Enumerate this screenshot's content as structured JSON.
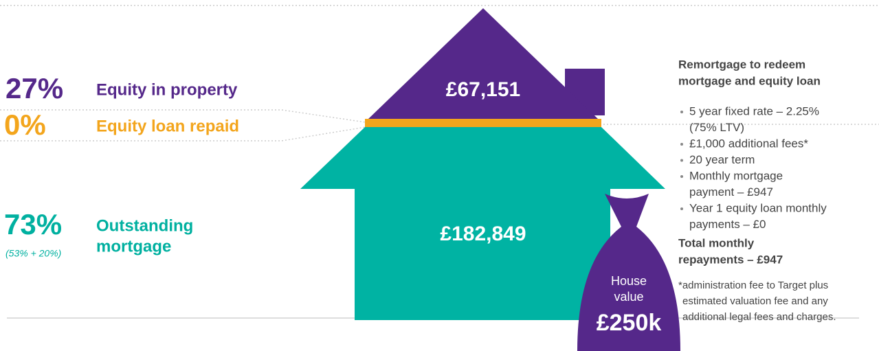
{
  "left": {
    "equity": {
      "percent": "27%",
      "label": "Equity in property"
    },
    "repaid": {
      "percent": "0%",
      "label": "Equity loan repaid"
    },
    "mortgage": {
      "percent": "73%",
      "note": "(53% + 20%)",
      "label": [
        "Outstanding",
        "mortgage"
      ]
    }
  },
  "house": {
    "roof_value": "£67,151",
    "body_value": "£182,849",
    "bag": {
      "label": [
        "House",
        "value"
      ],
      "value": "£250k"
    }
  },
  "right": {
    "title": [
      "Remortgage to redeem",
      "mortgage and equity loan"
    ],
    "items": [
      [
        "5 year fixed rate – 2.25%",
        "(75% LTV)"
      ],
      [
        "£1,000 additional fees*"
      ],
      [
        "20 year term"
      ],
      [
        "Monthly mortgage",
        "payment – £947"
      ],
      [
        "Year 1 equity loan monthly",
        "payments – £0"
      ]
    ],
    "total": [
      "Total monthly",
      "repayments – £947"
    ],
    "footnote": [
      "*administration fee to Target plus",
      "estimated valuation fee and any",
      "additional legal fees and charges."
    ]
  }
}
